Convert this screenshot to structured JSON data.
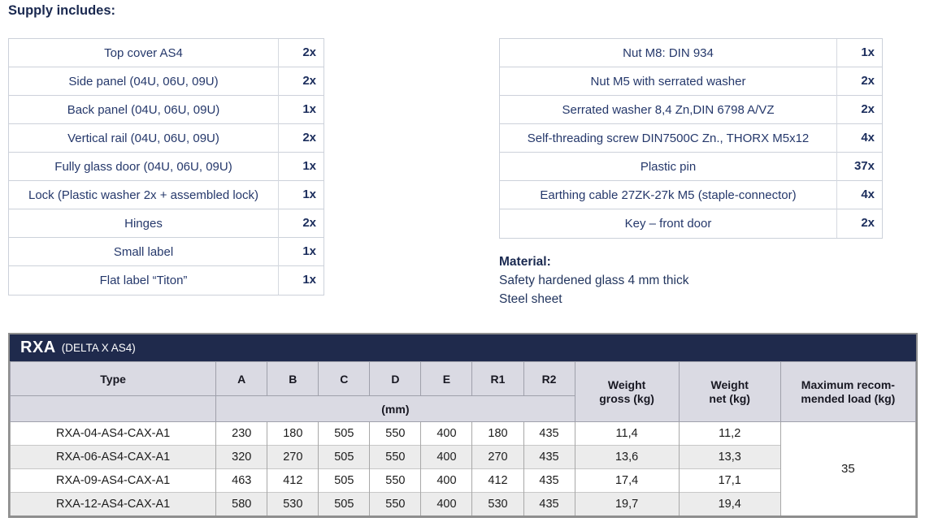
{
  "heading": "Supply includes:",
  "supply_left": [
    {
      "item": "Top cover AS4",
      "qty": "2x"
    },
    {
      "item": "Side panel (04U, 06U, 09U)",
      "qty": "2x"
    },
    {
      "item": "Back panel (04U, 06U, 09U)",
      "qty": "1x"
    },
    {
      "item": "Vertical rail (04U, 06U, 09U)",
      "qty": "2x"
    },
    {
      "item": "Fully glass door (04U, 06U, 09U)",
      "qty": "1x"
    },
    {
      "item": "Lock (Plastic washer 2x + assembled lock)",
      "qty": "1x"
    },
    {
      "item": "Hinges",
      "qty": "2x"
    },
    {
      "item": "Small label",
      "qty": "1x"
    },
    {
      "item": "Flat label “Titon”",
      "qty": "1x"
    }
  ],
  "supply_right": [
    {
      "item": "Nut M8: DIN 934",
      "qty": "1x"
    },
    {
      "item": "Nut M5 with serrated washer",
      "qty": "2x"
    },
    {
      "item": "Serrated washer 8,4 Zn,DIN 6798 A/VZ",
      "qty": "2x"
    },
    {
      "item": "Self-threading screw DIN7500C Zn., THORX M5x12",
      "qty": "4x"
    },
    {
      "item": "Plastic pin",
      "qty": "37x"
    },
    {
      "item": "Earthing cable 27ZK-27k M5 (staple-connector)",
      "qty": "4x"
    },
    {
      "item": "Key – front door",
      "qty": "2x"
    }
  ],
  "material": {
    "heading": "Material:",
    "lines": [
      "Safety hardened glass 4 mm thick",
      "Steel sheet"
    ]
  },
  "spec_table": {
    "title": "RXA",
    "subtitle": "(DELTA X AS4)",
    "type_header": "Type",
    "dim_columns": [
      "A",
      "B",
      "C",
      "D",
      "E",
      "R1",
      "R2"
    ],
    "unit_label": "(mm)",
    "weight_gross_header": [
      "Weight",
      "gross (kg)"
    ],
    "weight_net_header": [
      "Weight",
      "net (kg)"
    ],
    "max_load_header": [
      "Maximum recom-",
      "mended load (kg)"
    ],
    "max_load_value": "35",
    "rows": [
      {
        "type": "RXA-04-AS4-CAX-A1",
        "dims": [
          "230",
          "180",
          "505",
          "550",
          "400",
          "180",
          "435"
        ],
        "weight_gross": "11,4",
        "weight_net": "11,2"
      },
      {
        "type": "RXA-06-AS4-CAX-A1",
        "dims": [
          "320",
          "270",
          "505",
          "550",
          "400",
          "270",
          "435"
        ],
        "weight_gross": "13,6",
        "weight_net": "13,3"
      },
      {
        "type": "RXA-09-AS4-CAX-A1",
        "dims": [
          "463",
          "412",
          "505",
          "550",
          "400",
          "412",
          "435"
        ],
        "weight_gross": "17,4",
        "weight_net": "17,1"
      },
      {
        "type": "RXA-12-AS4-CAX-A1",
        "dims": [
          "580",
          "530",
          "505",
          "550",
          "400",
          "530",
          "435"
        ],
        "weight_gross": "19,7",
        "weight_net": "19,4"
      }
    ]
  },
  "colors": {
    "navy_bar": "#1f2a4c",
    "heading_navy": "#1a2950",
    "item_text_navy": "#25386b",
    "header_row_bg": "#dadae3",
    "stripe_row_bg": "#ececec"
  }
}
